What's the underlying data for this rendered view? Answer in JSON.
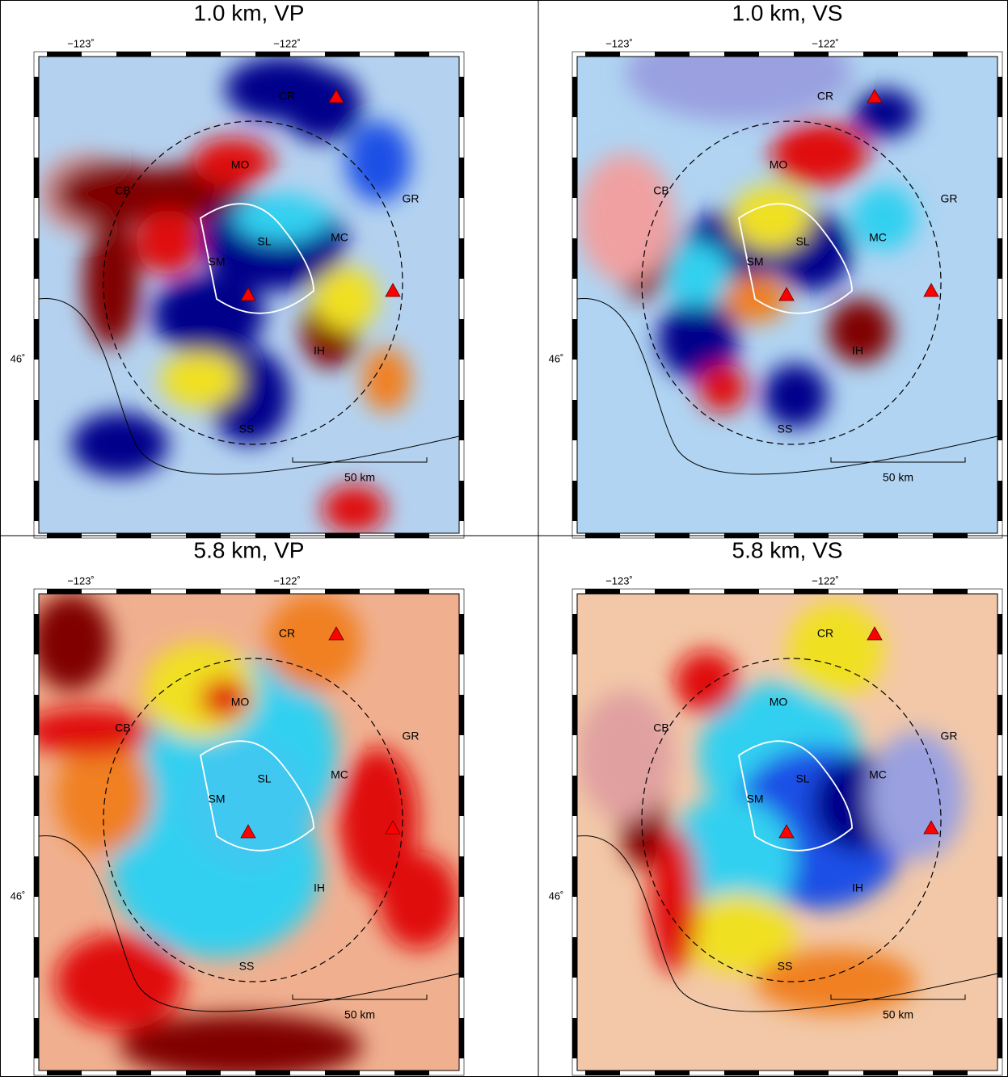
{
  "panels": [
    {
      "title": "1.0 km, VP",
      "lon_labels": [
        "−123˚",
        "−122˚"
      ],
      "lat_label": "46˚",
      "places": [
        "CR",
        "MO",
        "CB",
        "GR",
        "SL",
        "SM",
        "MC",
        "IH",
        "SS"
      ],
      "scale_label": "50 km"
    },
    {
      "title": "1.0 km, VS",
      "lon_labels": [
        "−123˚",
        "−122˚"
      ],
      "lat_label": "46˚",
      "places": [
        "CR",
        "MO",
        "CB",
        "GR",
        "SL",
        "SM",
        "MC",
        "IH",
        "SS"
      ],
      "scale_label": "50 km"
    },
    {
      "title": "5.8 km, VP",
      "lon_labels": [
        "−123˚",
        "−122˚"
      ],
      "lat_label": "46˚",
      "places": [
        "CR",
        "MO",
        "CB",
        "GR",
        "SL",
        "SM",
        "MC",
        "IH",
        "SS"
      ],
      "scale_label": "50 km"
    },
    {
      "title": "5.8 km, VS",
      "lon_labels": [
        "−123˚",
        "−122˚"
      ],
      "lat_label": "46˚",
      "places": [
        "CR",
        "MO",
        "CB",
        "GR",
        "SL",
        "SM",
        "MC",
        "IH",
        "SS"
      ],
      "scale_label": "50 km"
    }
  ]
}
